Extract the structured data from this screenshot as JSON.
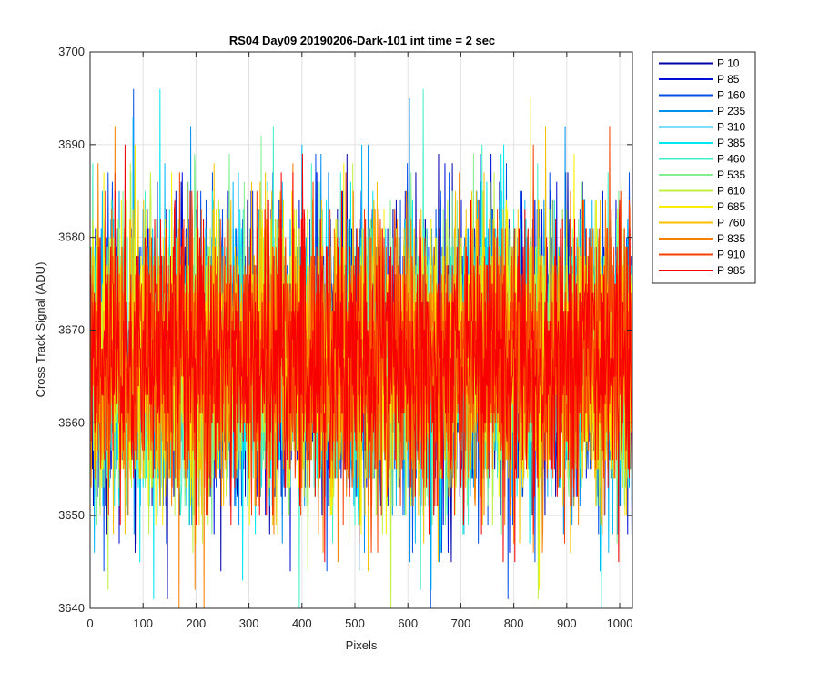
{
  "chart_data": {
    "type": "line",
    "title": "RS04 Day09 20190206-Dark-101 int time = 2 sec",
    "xlabel": "Pixels",
    "ylabel": "Cross Track Signal (ADU)",
    "xlim": [
      0,
      1024
    ],
    "ylim": [
      3640,
      3700
    ],
    "xticks": [
      "0",
      "100",
      "200",
      "300",
      "400",
      "500",
      "600",
      "700",
      "800",
      "900",
      "1000"
    ],
    "yticks": [
      "3640",
      "3650",
      "3660",
      "3670",
      "3680",
      "3690",
      "3700"
    ],
    "grid": true,
    "legend_position": "outside-top-right",
    "noise_profile": {
      "mean": 3667,
      "std": 7.5,
      "min": 3640,
      "max": 3696,
      "points_per_series": 1024
    },
    "series": [
      {
        "name": "P 10",
        "color": "#0000aa"
      },
      {
        "name": "P 85",
        "color": "#0010d9"
      },
      {
        "name": "P 160",
        "color": "#0050e8"
      },
      {
        "name": "P 235",
        "color": "#0090f0"
      },
      {
        "name": "P 310",
        "color": "#00b8f5"
      },
      {
        "name": "P 385",
        "color": "#00e8f0"
      },
      {
        "name": "P 460",
        "color": "#40f0c8"
      },
      {
        "name": "P 535",
        "color": "#80f090"
      },
      {
        "name": "P 610",
        "color": "#c0f040"
      },
      {
        "name": "P 685",
        "color": "#f8f000"
      },
      {
        "name": "P 760",
        "color": "#f8c000"
      },
      {
        "name": "P 835",
        "color": "#f88000"
      },
      {
        "name": "P 910",
        "color": "#f84000"
      },
      {
        "name": "P 985",
        "color": "#f80000"
      }
    ]
  }
}
